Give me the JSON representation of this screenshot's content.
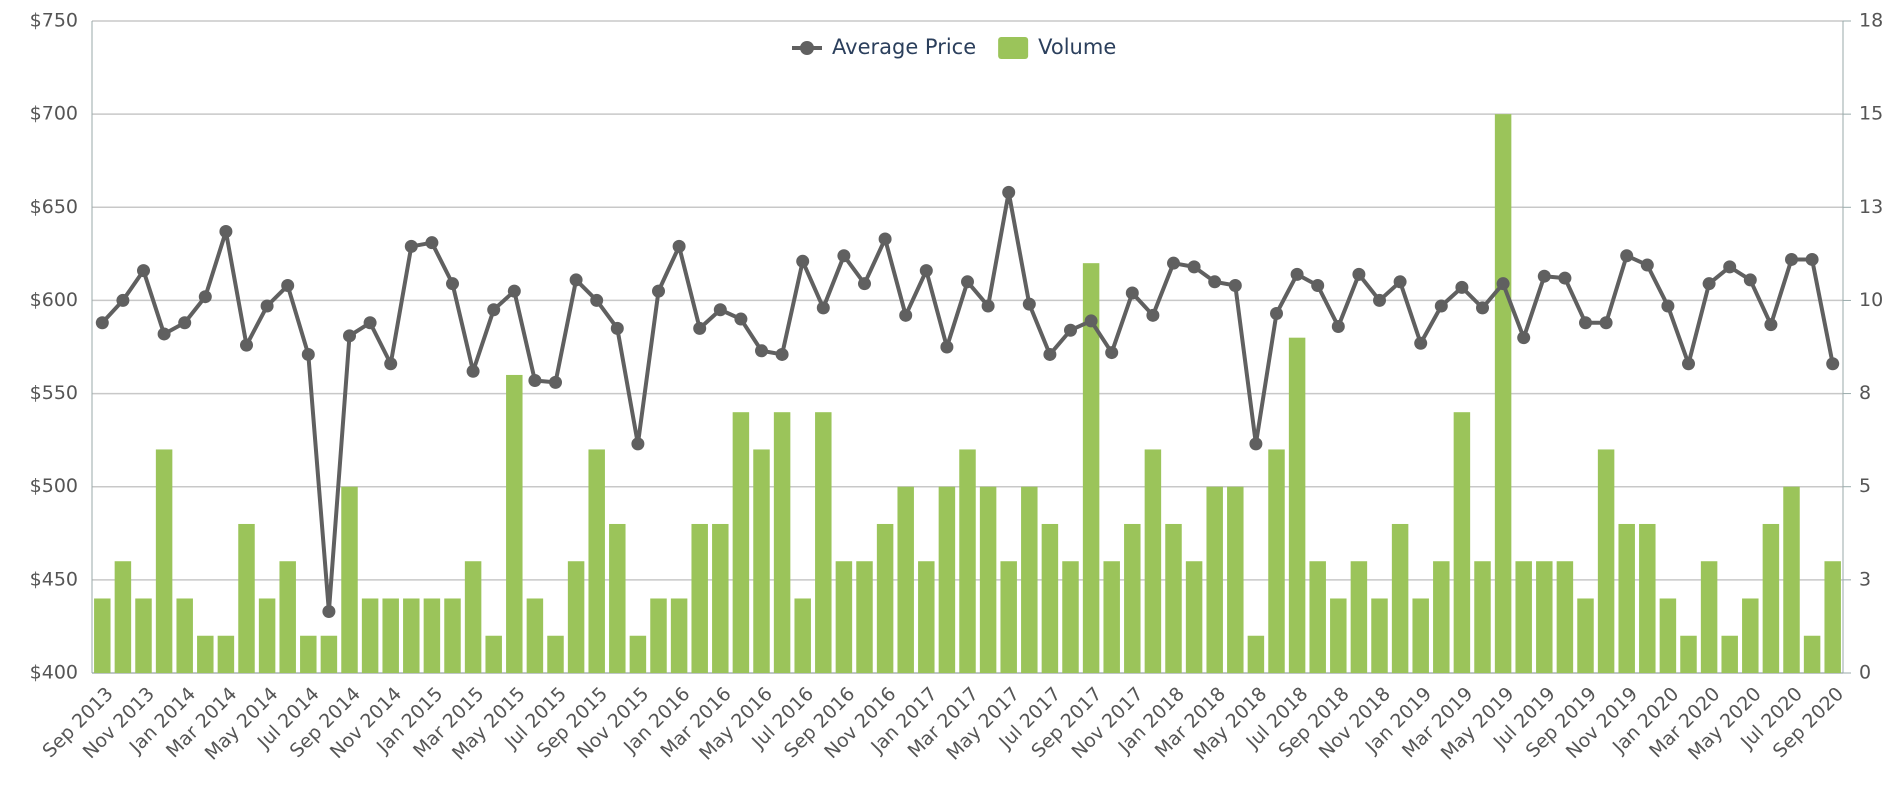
{
  "chart_data": {
    "type": "combo",
    "categories": [
      "Sep 2013",
      null,
      "Nov 2013",
      null,
      "Jan 2014",
      null,
      "Mar 2014",
      null,
      "May 2014",
      null,
      "Jul 2014",
      null,
      "Sep 2014",
      null,
      "Nov 2014",
      null,
      "Jan 2015",
      null,
      "Mar 2015",
      null,
      "May 2015",
      null,
      "Jul 2015",
      null,
      "Sep 2015",
      null,
      "Nov 2015",
      null,
      "Jan 2016",
      null,
      "Mar 2016",
      null,
      "May 2016",
      null,
      "Jul 2016",
      null,
      "Sep 2016",
      null,
      "Nov 2016",
      null,
      "Jan 2017",
      null,
      "Mar 2017",
      null,
      "May 2017",
      null,
      "Jul 2017",
      null,
      "Sep 2017",
      null,
      "Nov 2017",
      null,
      "Jan 2018",
      null,
      "Mar 2018",
      null,
      "May 2018",
      null,
      "Jul 2018",
      null,
      "Sep 2018",
      null,
      "Nov 2018",
      null,
      "Jan 2019",
      null,
      "Mar 2019",
      null,
      "May 2019",
      null,
      "Jul 2019",
      null,
      "Sep 2019",
      null,
      "Nov 2019",
      null,
      "Jan 2020",
      null,
      "Mar 2020",
      null,
      "May 2020",
      null,
      "Jul 2020",
      null,
      "Sep 2020"
    ],
    "series": [
      {
        "name": "Average Price",
        "type": "line",
        "color": "#606060",
        "values": [
          588,
          600,
          616,
          582,
          588,
          602,
          637,
          576,
          597,
          608,
          571,
          433,
          581,
          588,
          566,
          629,
          631,
          609,
          562,
          595,
          605,
          557,
          556,
          611,
          600,
          585,
          523,
          605,
          629,
          585,
          595,
          590,
          573,
          571,
          621,
          596,
          624,
          609,
          633,
          592,
          616,
          575,
          610,
          597,
          658,
          598,
          571,
          584,
          589,
          572,
          604,
          592,
          620,
          618,
          610,
          608,
          523,
          593,
          614,
          608,
          586,
          614,
          600,
          610,
          577,
          597,
          607,
          596,
          609,
          580,
          613,
          612,
          588,
          588,
          624,
          619,
          597,
          566,
          609,
          618,
          611,
          587,
          622,
          622,
          566
        ]
      },
      {
        "name": "Volume",
        "type": "bar",
        "axis": "y2",
        "color": "#9bc45a",
        "values": [
          2,
          3,
          2,
          6,
          2,
          1,
          1,
          4,
          2,
          3,
          1,
          1,
          5,
          2,
          2,
          2,
          2,
          2,
          3,
          1,
          8,
          2,
          1,
          3,
          6,
          4,
          1,
          2,
          2,
          4,
          4,
          7,
          6,
          7,
          2,
          7,
          3,
          3,
          4,
          5,
          3,
          5,
          6,
          5,
          3,
          5,
          4,
          3,
          11,
          3,
          4,
          6,
          4,
          3,
          5,
          5,
          1,
          6,
          9,
          3,
          2,
          3,
          2,
          4,
          2,
          3,
          7,
          3,
          15,
          3,
          3,
          3,
          2,
          6,
          4,
          4,
          2,
          1,
          3,
          1,
          2,
          4,
          5,
          1,
          3
        ]
      }
    ],
    "ylim": [
      400,
      750
    ],
    "yticks": [
      {
        "value": 400,
        "label": "$400"
      },
      {
        "value": 450,
        "label": "$450"
      },
      {
        "value": 500,
        "label": "$500"
      },
      {
        "value": 550,
        "label": "$550"
      },
      {
        "value": 600,
        "label": "$600"
      },
      {
        "value": 650,
        "label": "$650"
      },
      {
        "value": 700,
        "label": "$700"
      },
      {
        "value": 750,
        "label": "$750"
      }
    ],
    "y2lim": [
      0,
      17.5
    ],
    "y2ticks": [
      0,
      {
        "value": 2.5,
        "label": "3"
      },
      5,
      {
        "value": 7.5,
        "label": "8"
      },
      10,
      {
        "value": 12.5,
        "label": "13"
      },
      15,
      {
        "value": 17.5,
        "label": "18"
      }
    ],
    "grid": true,
    "legend": "top"
  }
}
